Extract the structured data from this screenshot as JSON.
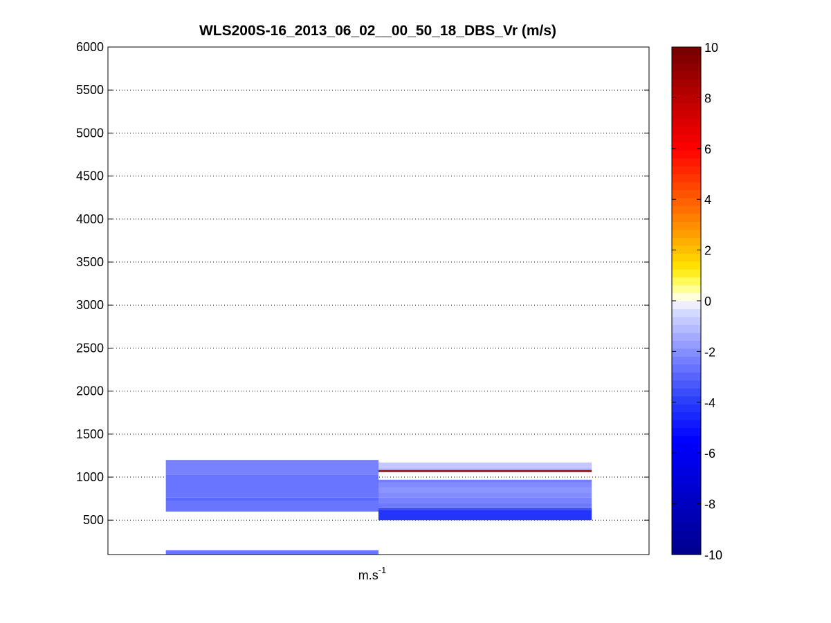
{
  "chart_data": {
    "type": "heatmap",
    "title": "WLS200S-16_2013_06_02__00_50_18_DBS_Vr (m/s)",
    "xlabel_base": "m.s",
    "xlabel_exp": "-1",
    "ylabel": "",
    "xlim": [
      0,
      1
    ],
    "ylim": [
      100,
      6000
    ],
    "yticks": [
      500,
      1000,
      1500,
      2000,
      2500,
      3000,
      3500,
      4000,
      4500,
      5000,
      5500,
      6000
    ],
    "grid": "y dotted",
    "colorbar": {
      "range": [
        -10,
        10
      ],
      "ticks": [
        -10,
        -8,
        -6,
        -4,
        -2,
        0,
        2,
        4,
        6,
        8,
        10
      ],
      "colormap": "blue-white-yellow-red",
      "levels": 64
    },
    "columns": [
      {
        "x0": 0.107,
        "x1": 0.5,
        "cells": [
          {
            "y0": 100,
            "y1": 150,
            "value": -2.6
          },
          {
            "y0": 600,
            "y1": 720,
            "value": -2.6
          },
          {
            "y0": 720,
            "y1": 760,
            "value": -2.9
          },
          {
            "y0": 760,
            "y1": 1030,
            "value": -2.6
          },
          {
            "y0": 1030,
            "y1": 1200,
            "value": -2.3
          }
        ]
      },
      {
        "x0": 0.5,
        "x1": 0.894,
        "cells": [
          {
            "y0": 500,
            "y1": 620,
            "value": -4.2
          },
          {
            "y0": 620,
            "y1": 640,
            "value": -3.6
          },
          {
            "y0": 640,
            "y1": 700,
            "value": -2.5
          },
          {
            "y0": 700,
            "y1": 760,
            "value": -2.3
          },
          {
            "y0": 760,
            "y1": 820,
            "value": -2.1
          },
          {
            "y0": 820,
            "y1": 880,
            "value": -1.9
          },
          {
            "y0": 880,
            "y1": 940,
            "value": -2.1
          },
          {
            "y0": 940,
            "y1": 970,
            "value": -2.4
          },
          {
            "y0": 1060,
            "y1": 1080,
            "value": 9.5
          },
          {
            "y0": 1080,
            "y1": 1100,
            "value": -1.5
          },
          {
            "y0": 1100,
            "y1": 1170,
            "value": -0.8
          }
        ]
      }
    ]
  }
}
